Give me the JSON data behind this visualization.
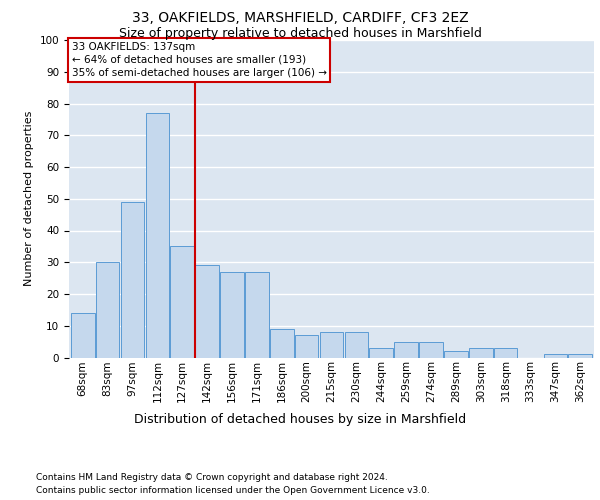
{
  "title1": "33, OAKFIELDS, MARSHFIELD, CARDIFF, CF3 2EZ",
  "title2": "Size of property relative to detached houses in Marshfield",
  "xlabel": "Distribution of detached houses by size in Marshfield",
  "ylabel": "Number of detached properties",
  "footnote1": "Contains HM Land Registry data © Crown copyright and database right 2024.",
  "footnote2": "Contains public sector information licensed under the Open Government Licence v3.0.",
  "categories": [
    "68sqm",
    "83sqm",
    "97sqm",
    "112sqm",
    "127sqm",
    "142sqm",
    "156sqm",
    "171sqm",
    "186sqm",
    "200sqm",
    "215sqm",
    "230sqm",
    "244sqm",
    "259sqm",
    "274sqm",
    "289sqm",
    "303sqm",
    "318sqm",
    "333sqm",
    "347sqm",
    "362sqm"
  ],
  "values": [
    14,
    30,
    49,
    77,
    35,
    29,
    27,
    27,
    9,
    7,
    8,
    8,
    3,
    5,
    5,
    2,
    3,
    3,
    0,
    1,
    1
  ],
  "bar_color": "#c5d8ed",
  "bar_edge_color": "#5b9bd5",
  "background_color": "#dce6f1",
  "grid_color": "#ffffff",
  "red_line_x": 4.5,
  "annotation_text": "33 OAKFIELDS: 137sqm\n← 64% of detached houses are smaller (193)\n35% of semi-detached houses are larger (106) →",
  "annotation_box_color": "#ffffff",
  "annotation_box_edge": "#cc0000",
  "ylim": [
    0,
    100
  ],
  "yticks": [
    0,
    10,
    20,
    30,
    40,
    50,
    60,
    70,
    80,
    90,
    100
  ],
  "title1_fontsize": 10,
  "title2_fontsize": 9,
  "xlabel_fontsize": 9,
  "ylabel_fontsize": 8,
  "tick_fontsize": 7.5,
  "annotation_fontsize": 7.5,
  "footnote_fontsize": 6.5
}
